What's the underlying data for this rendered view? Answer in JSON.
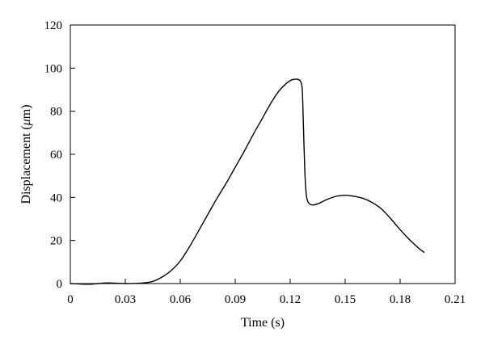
{
  "chart_data": {
    "type": "line",
    "title": "",
    "xlabel": "Time (s)",
    "ylabel_parts": {
      "before": "Displacement (",
      "italic": "μ",
      "after": "m)"
    },
    "xlim": [
      0,
      0.21
    ],
    "ylim": [
      0,
      120
    ],
    "xticks": [
      0,
      0.03,
      0.06,
      0.09,
      0.12,
      0.15,
      0.18,
      0.21
    ],
    "xtick_labels": [
      "0",
      "0.03",
      "0.06",
      "0.09",
      "0.12",
      "0.15",
      "0.18",
      "0.21"
    ],
    "yticks": [
      0,
      20,
      40,
      60,
      80,
      100,
      120
    ],
    "ytick_labels": [
      "0",
      "20",
      "40",
      "60",
      "80",
      "100",
      "120"
    ],
    "grid": false,
    "legend": "none",
    "series": [
      {
        "color": "#000000",
        "x": [
          0,
          0.01,
          0.02,
          0.03,
          0.04,
          0.045,
          0.05,
          0.055,
          0.06,
          0.065,
          0.07,
          0.075,
          0.08,
          0.085,
          0.09,
          0.095,
          0.1,
          0.105,
          0.11,
          0.114,
          0.118,
          0.12,
          0.122,
          0.124,
          0.1255,
          0.1265,
          0.127,
          0.1275,
          0.128,
          0.1285,
          0.129,
          0.13,
          0.132,
          0.135,
          0.14,
          0.145,
          0.15,
          0.155,
          0.16,
          0.165,
          0.17,
          0.175,
          0.18,
          0.185,
          0.19,
          0.193
        ],
        "y": [
          0,
          -0.3,
          0.3,
          0,
          0.3,
          1,
          3,
          6,
          10.5,
          17,
          24.5,
          32,
          39.5,
          46.5,
          54,
          61.5,
          69.5,
          77,
          84.5,
          89.5,
          93,
          94.2,
          94.8,
          94.8,
          94,
          91,
          80,
          65,
          52,
          44,
          40,
          37.5,
          36.5,
          37,
          39,
          40.5,
          41,
          40.5,
          39.5,
          37.5,
          34.5,
          30,
          25,
          20.5,
          16.5,
          14.5
        ]
      }
    ]
  }
}
